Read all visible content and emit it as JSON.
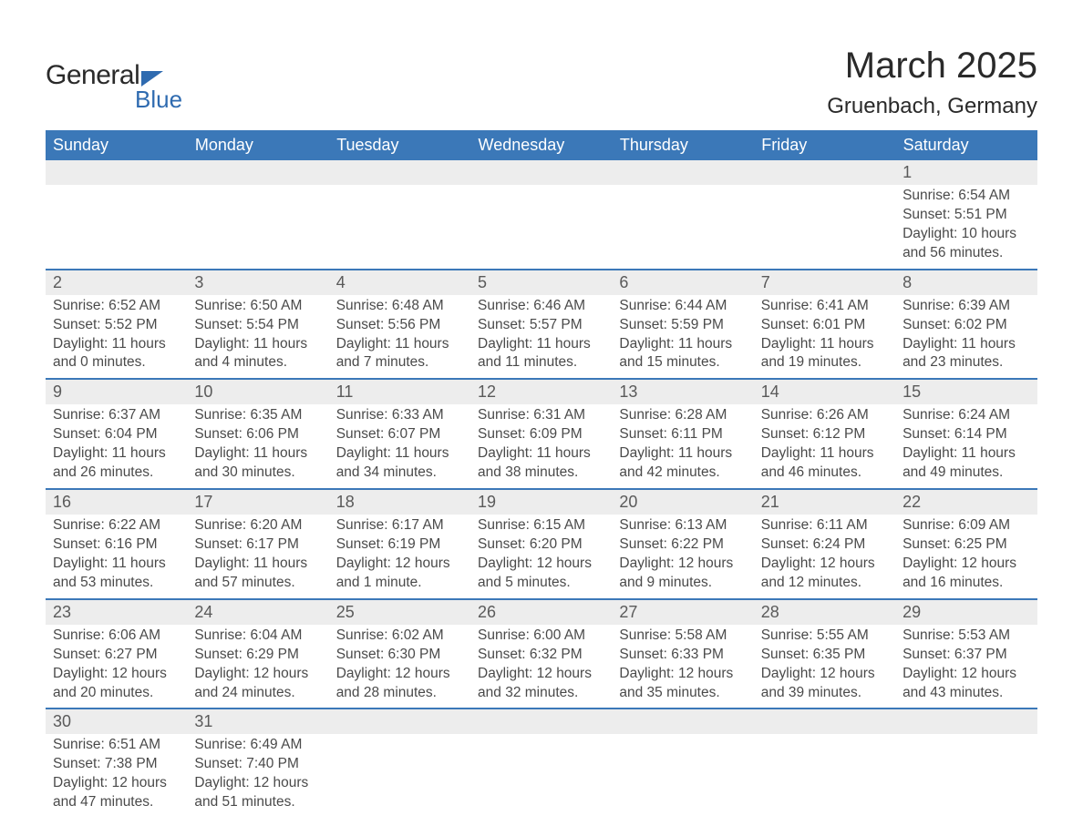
{
  "logo": {
    "text1": "General",
    "text2": "Blue"
  },
  "title": {
    "month": "March 2025",
    "location": "Gruenbach, Germany"
  },
  "weekdays": [
    "Sunday",
    "Monday",
    "Tuesday",
    "Wednesday",
    "Thursday",
    "Friday",
    "Saturday"
  ],
  "colors": {
    "header_bg": "#3b78b8",
    "header_text": "#ffffff",
    "daynum_bg": "#ededed",
    "border": "#3b78b8",
    "logo_accent": "#2f6bb0"
  },
  "grid": [
    [
      null,
      null,
      null,
      null,
      null,
      null,
      {
        "d": "1",
        "sr": "6:54 AM",
        "ss": "5:51 PM",
        "dl": "10 hours and 56 minutes."
      }
    ],
    [
      {
        "d": "2",
        "sr": "6:52 AM",
        "ss": "5:52 PM",
        "dl": "11 hours and 0 minutes."
      },
      {
        "d": "3",
        "sr": "6:50 AM",
        "ss": "5:54 PM",
        "dl": "11 hours and 4 minutes."
      },
      {
        "d": "4",
        "sr": "6:48 AM",
        "ss": "5:56 PM",
        "dl": "11 hours and 7 minutes."
      },
      {
        "d": "5",
        "sr": "6:46 AM",
        "ss": "5:57 PM",
        "dl": "11 hours and 11 minutes."
      },
      {
        "d": "6",
        "sr": "6:44 AM",
        "ss": "5:59 PM",
        "dl": "11 hours and 15 minutes."
      },
      {
        "d": "7",
        "sr": "6:41 AM",
        "ss": "6:01 PM",
        "dl": "11 hours and 19 minutes."
      },
      {
        "d": "8",
        "sr": "6:39 AM",
        "ss": "6:02 PM",
        "dl": "11 hours and 23 minutes."
      }
    ],
    [
      {
        "d": "9",
        "sr": "6:37 AM",
        "ss": "6:04 PM",
        "dl": "11 hours and 26 minutes."
      },
      {
        "d": "10",
        "sr": "6:35 AM",
        "ss": "6:06 PM",
        "dl": "11 hours and 30 minutes."
      },
      {
        "d": "11",
        "sr": "6:33 AM",
        "ss": "6:07 PM",
        "dl": "11 hours and 34 minutes."
      },
      {
        "d": "12",
        "sr": "6:31 AM",
        "ss": "6:09 PM",
        "dl": "11 hours and 38 minutes."
      },
      {
        "d": "13",
        "sr": "6:28 AM",
        "ss": "6:11 PM",
        "dl": "11 hours and 42 minutes."
      },
      {
        "d": "14",
        "sr": "6:26 AM",
        "ss": "6:12 PM",
        "dl": "11 hours and 46 minutes."
      },
      {
        "d": "15",
        "sr": "6:24 AM",
        "ss": "6:14 PM",
        "dl": "11 hours and 49 minutes."
      }
    ],
    [
      {
        "d": "16",
        "sr": "6:22 AM",
        "ss": "6:16 PM",
        "dl": "11 hours and 53 minutes."
      },
      {
        "d": "17",
        "sr": "6:20 AM",
        "ss": "6:17 PM",
        "dl": "11 hours and 57 minutes."
      },
      {
        "d": "18",
        "sr": "6:17 AM",
        "ss": "6:19 PM",
        "dl": "12 hours and 1 minute."
      },
      {
        "d": "19",
        "sr": "6:15 AM",
        "ss": "6:20 PM",
        "dl": "12 hours and 5 minutes."
      },
      {
        "d": "20",
        "sr": "6:13 AM",
        "ss": "6:22 PM",
        "dl": "12 hours and 9 minutes."
      },
      {
        "d": "21",
        "sr": "6:11 AM",
        "ss": "6:24 PM",
        "dl": "12 hours and 12 minutes."
      },
      {
        "d": "22",
        "sr": "6:09 AM",
        "ss": "6:25 PM",
        "dl": "12 hours and 16 minutes."
      }
    ],
    [
      {
        "d": "23",
        "sr": "6:06 AM",
        "ss": "6:27 PM",
        "dl": "12 hours and 20 minutes."
      },
      {
        "d": "24",
        "sr": "6:04 AM",
        "ss": "6:29 PM",
        "dl": "12 hours and 24 minutes."
      },
      {
        "d": "25",
        "sr": "6:02 AM",
        "ss": "6:30 PM",
        "dl": "12 hours and 28 minutes."
      },
      {
        "d": "26",
        "sr": "6:00 AM",
        "ss": "6:32 PM",
        "dl": "12 hours and 32 minutes."
      },
      {
        "d": "27",
        "sr": "5:58 AM",
        "ss": "6:33 PM",
        "dl": "12 hours and 35 minutes."
      },
      {
        "d": "28",
        "sr": "5:55 AM",
        "ss": "6:35 PM",
        "dl": "12 hours and 39 minutes."
      },
      {
        "d": "29",
        "sr": "5:53 AM",
        "ss": "6:37 PM",
        "dl": "12 hours and 43 minutes."
      }
    ],
    [
      {
        "d": "30",
        "sr": "6:51 AM",
        "ss": "7:38 PM",
        "dl": "12 hours and 47 minutes."
      },
      {
        "d": "31",
        "sr": "6:49 AM",
        "ss": "7:40 PM",
        "dl": "12 hours and 51 minutes."
      },
      null,
      null,
      null,
      null,
      null
    ]
  ],
  "labels": {
    "sunrise": "Sunrise: ",
    "sunset": "Sunset: ",
    "daylight": "Daylight: "
  }
}
